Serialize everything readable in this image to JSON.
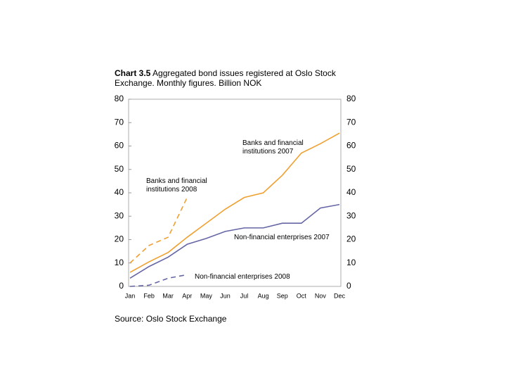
{
  "chart_data": {
    "type": "line",
    "title_prefix": "Chart 3.5",
    "title": "Aggregated  bond issues registered at Oslo Stock Exchange. Monthly figures. Billion NOK",
    "source": "Source: Oslo Stock Exchange",
    "categories": [
      "Jan",
      "Feb",
      "Mar",
      "Apr",
      "May",
      "Jun",
      "Jul",
      "Aug",
      "Sep",
      "Oct",
      "Nov",
      "Dec"
    ],
    "ylim": [
      0,
      80
    ],
    "yticks": [
      0,
      10,
      20,
      30,
      40,
      50,
      60,
      70,
      80
    ],
    "series": [
      {
        "name": "Banks and financial institutions 2007",
        "color": "#f0a030",
        "dashed": false,
        "values": [
          6,
          10.5,
          14.5,
          21,
          27,
          33,
          38,
          40,
          47.5,
          57,
          61,
          65.5
        ]
      },
      {
        "name": "Non-financial enterprises 2007",
        "color": "#6666a6",
        "dashed": false,
        "values": [
          3.5,
          8.5,
          12.5,
          18,
          20.5,
          23.5,
          25,
          25,
          27,
          27,
          33.5,
          35
        ]
      },
      {
        "name": "Banks and financial institutions 2008",
        "color": "#f0a030",
        "dashed": true,
        "values": [
          10,
          17.5,
          21,
          38,
          null,
          null,
          null,
          null,
          null,
          null,
          null,
          null
        ]
      },
      {
        "name": "Non-financial enterprises 2008",
        "color": "#6666a6",
        "dashed": true,
        "values": [
          0,
          0.5,
          3.5,
          5,
          null,
          null,
          null,
          null,
          null,
          null,
          null,
          null
        ]
      }
    ]
  }
}
